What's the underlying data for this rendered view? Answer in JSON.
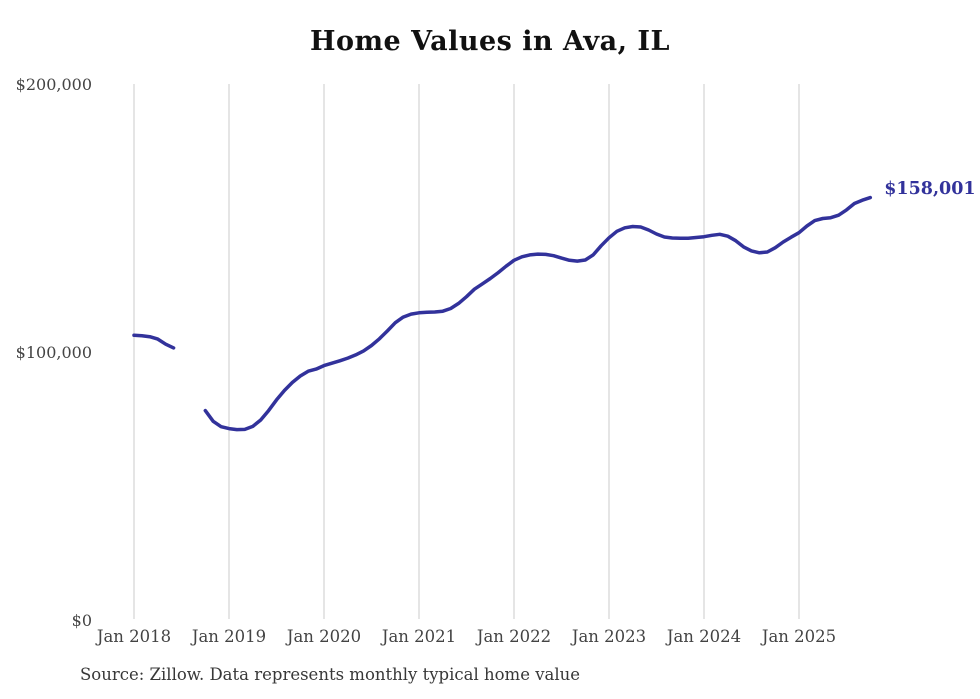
{
  "title": "Home Values in Ava, IL",
  "source": "Source: Zillow. Data represents monthly typical home value",
  "end_label": {
    "text": "$158,001"
  },
  "colors": {
    "line": "#32329B",
    "grid": "#cbcbcb",
    "axis_text": "#444444",
    "title_text": "#111111",
    "source_text": "#383838",
    "background": "#ffffff"
  },
  "y_axis": {
    "ticks": [
      {
        "label": "$200,000",
        "value": 200000
      },
      {
        "label": "$100,000",
        "value": 100000
      },
      {
        "label": "$0",
        "value": 0
      }
    ]
  },
  "x_axis": {
    "ticks": [
      {
        "label": "Jan 2018",
        "month_index": 0
      },
      {
        "label": "Jan 2019",
        "month_index": 12
      },
      {
        "label": "Jan 2020",
        "month_index": 24
      },
      {
        "label": "Jan 2021",
        "month_index": 36
      },
      {
        "label": "Jan 2022",
        "month_index": 48
      },
      {
        "label": "Jan 2023",
        "month_index": 60
      },
      {
        "label": "Jan 2024",
        "month_index": 72
      },
      {
        "label": "Jan 2025",
        "month_index": 84
      }
    ]
  },
  "chart_data": {
    "type": "line",
    "title": "Home Values in Ava, IL",
    "xlabel": "",
    "ylabel": "",
    "ylim": [
      0,
      200000
    ],
    "grid": "vertical-only",
    "legend": "none",
    "final_value": 158001,
    "final_value_label": "$158,001",
    "data_gap_months": [
      "2018-07",
      "2018-08",
      "2018-09"
    ],
    "series": [
      {
        "name": "Monthly typical home value (USD)",
        "x": [
          "2018-01",
          "2018-02",
          "2018-03",
          "2018-04",
          "2018-05",
          "2018-06",
          "2018-07",
          "2018-08",
          "2018-09",
          "2018-10",
          "2018-11",
          "2018-12",
          "2019-01",
          "2019-02",
          "2019-03",
          "2019-04",
          "2019-05",
          "2019-06",
          "2019-07",
          "2019-08",
          "2019-09",
          "2019-10",
          "2019-11",
          "2019-12",
          "2020-01",
          "2020-02",
          "2020-03",
          "2020-04",
          "2020-05",
          "2020-06",
          "2020-07",
          "2020-08",
          "2020-09",
          "2020-10",
          "2020-11",
          "2020-12",
          "2021-01",
          "2021-02",
          "2021-03",
          "2021-04",
          "2021-05",
          "2021-06",
          "2021-07",
          "2021-08",
          "2021-09",
          "2021-10",
          "2021-11",
          "2021-12",
          "2022-01",
          "2022-02",
          "2022-03",
          "2022-04",
          "2022-05",
          "2022-06",
          "2022-07",
          "2022-08",
          "2022-09",
          "2022-10",
          "2022-11",
          "2022-12",
          "2023-01",
          "2023-02",
          "2023-03",
          "2023-04",
          "2023-05",
          "2023-06",
          "2023-07",
          "2023-08",
          "2023-09",
          "2023-10",
          "2023-11",
          "2023-12",
          "2024-01",
          "2024-02",
          "2024-03",
          "2024-04",
          "2024-05",
          "2024-06",
          "2024-07",
          "2024-08",
          "2024-09",
          "2024-10",
          "2024-11",
          "2024-12",
          "2025-01",
          "2025-02",
          "2025-03",
          "2025-04",
          "2025-05",
          "2025-06",
          "2025-07",
          "2025-08",
          "2025-09",
          "2025-10"
        ],
        "values": [
          106600,
          106400,
          106100,
          105200,
          103300,
          101900,
          null,
          null,
          null,
          78500,
          74500,
          72500,
          71800,
          71400,
          71500,
          72600,
          75000,
          78500,
          82500,
          86000,
          89000,
          91400,
          93200,
          94000,
          95300,
          96200,
          97100,
          98100,
          99300,
          100800,
          102800,
          105300,
          108200,
          111300,
          113400,
          114500,
          115000,
          115200,
          115300,
          115600,
          116600,
          118500,
          121000,
          123800,
          125800,
          127800,
          130000,
          132400,
          134600,
          135900,
          136600,
          136900,
          136800,
          136300,
          135400,
          134600,
          134300,
          134700,
          136600,
          140000,
          143000,
          145400,
          146700,
          147200,
          147000,
          145900,
          144400,
          143300,
          142900,
          142800,
          142800,
          143100,
          143400,
          143900,
          144300,
          143600,
          141900,
          139600,
          138100,
          137400,
          137700,
          139300,
          141400,
          143200,
          144900,
          147400,
          149400,
          150200,
          150500,
          151400,
          153400,
          155800,
          157000,
          158001
        ]
      }
    ]
  }
}
